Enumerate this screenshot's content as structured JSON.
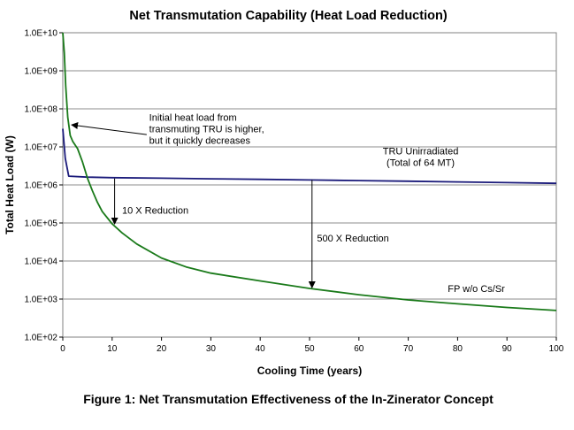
{
  "chart_data": {
    "type": "line",
    "title": "Net Transmutation Capability (Heat Load Reduction)",
    "caption": "Figure 1: Net Transmutation Effectiveness of the In-Zinerator Concept",
    "xlabel": "Cooling Time (years)",
    "ylabel": "Total Heat Load (W)",
    "xlim": [
      0,
      100
    ],
    "ylim": [
      100,
      10000000000
    ],
    "yscale": "log",
    "grid": "horizontal",
    "x_ticks": [
      "0",
      "10",
      "20",
      "30",
      "40",
      "50",
      "60",
      "70",
      "80",
      "90",
      "100"
    ],
    "y_ticks": [
      "1.0E+02",
      "1.0E+03",
      "1.0E+04",
      "1.0E+05",
      "1.0E+06",
      "1.0E+07",
      "1.0E+08",
      "1.0E+09",
      "1.0E+10"
    ],
    "series": [
      {
        "name": "TRU Unirradiated",
        "color": "#1a1a7a",
        "points": [
          [
            0,
            30000000
          ],
          [
            0.5,
            5000000
          ],
          [
            1.2,
            1700000
          ],
          [
            5,
            1600000
          ],
          [
            10,
            1550000
          ],
          [
            20,
            1500000
          ],
          [
            30,
            1450000
          ],
          [
            40,
            1400000
          ],
          [
            50,
            1350000
          ],
          [
            60,
            1300000
          ],
          [
            70,
            1250000
          ],
          [
            80,
            1200000
          ],
          [
            90,
            1150000
          ],
          [
            100,
            1100000
          ]
        ]
      },
      {
        "name": "FP w/o Cs/Sr",
        "color": "#1a7a1a",
        "points": [
          [
            0,
            10000000000
          ],
          [
            0.3,
            3000000000
          ],
          [
            0.6,
            400000000
          ],
          [
            1,
            60000000
          ],
          [
            1.5,
            20000000
          ],
          [
            2,
            14000000
          ],
          [
            3,
            9000000
          ],
          [
            4,
            4000000
          ],
          [
            5,
            1500000
          ],
          [
            6,
            700000
          ],
          [
            7,
            350000
          ],
          [
            8,
            200000
          ],
          [
            10,
            95000
          ],
          [
            12,
            55000
          ],
          [
            15,
            28000
          ],
          [
            20,
            12000
          ],
          [
            25,
            7000
          ],
          [
            30,
            4800
          ],
          [
            40,
            3000
          ],
          [
            50,
            1900
          ],
          [
            60,
            1300
          ],
          [
            70,
            950
          ],
          [
            80,
            750
          ],
          [
            90,
            600
          ],
          [
            100,
            500
          ]
        ]
      }
    ],
    "annotations": [
      {
        "lines": [
          "Initial heat load from",
          "transmuting TRU is higher,",
          "but it quickly decreases"
        ],
        "x": 17.5,
        "y": 30000000,
        "arrow_to": [
          1.8,
          38000000
        ],
        "arrow_from": [
          17,
          21000000
        ]
      },
      {
        "lines": [
          "TRU Unirradiated",
          "(Total of 64 MT)"
        ],
        "x": 72.5,
        "y": 5500000
      },
      {
        "lines": [
          "10 X Reduction"
        ],
        "x": 12,
        "y": 220000,
        "arrow_from": [
          10.5,
          1480000
        ],
        "arrow_to": [
          10.5,
          95000
        ]
      },
      {
        "lines": [
          "500 X Reduction"
        ],
        "x": 51.5,
        "y": 40000,
        "arrow_from": [
          50.5,
          1350000
        ],
        "arrow_to": [
          50.5,
          2000
        ]
      },
      {
        "lines": [
          "FP w/o Cs/Sr"
        ],
        "x": 78,
        "y": 1900
      }
    ]
  }
}
